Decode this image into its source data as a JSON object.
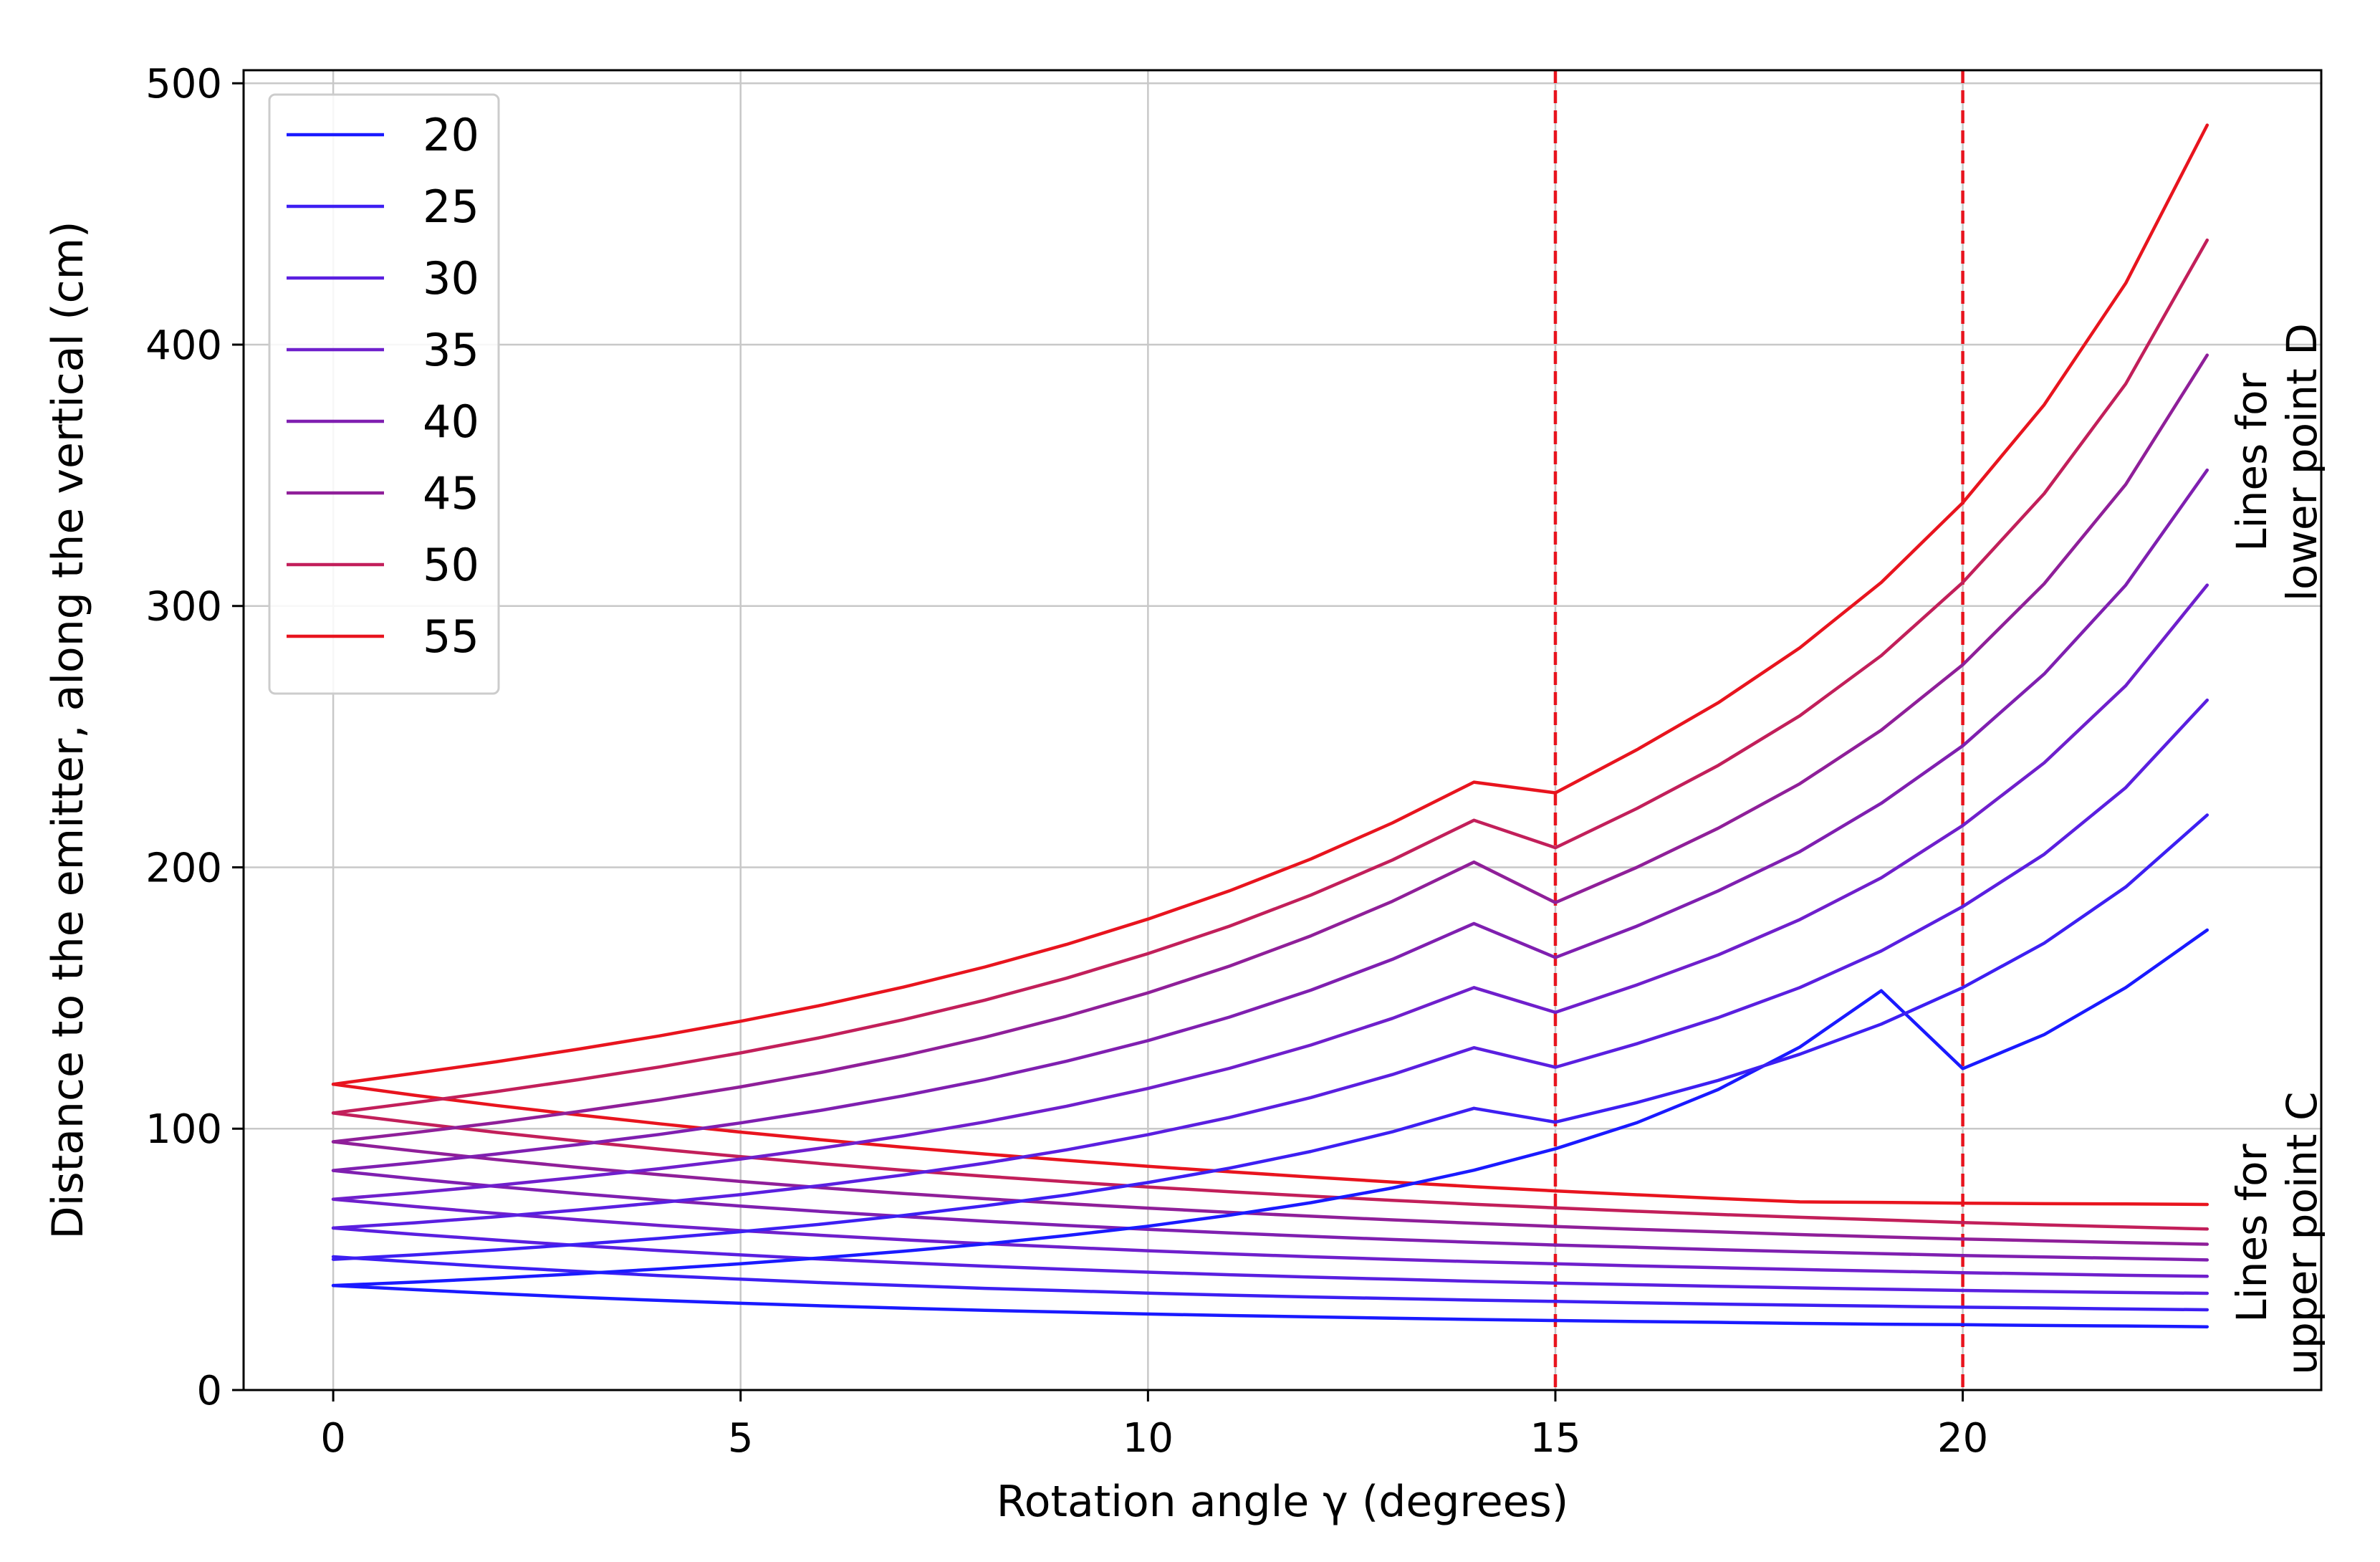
{
  "chart_data": {
    "type": "line",
    "title": "",
    "xlabel": "Rotation angle γ (degrees)",
    "ylabel": "Distance to the emitter, along the vertical (cm)",
    "xlim": [
      -1.1,
      24.4
    ],
    "ylim": [
      0,
      505
    ],
    "xticks": [
      0,
      5,
      10,
      15,
      20
    ],
    "yticks": [
      0,
      100,
      200,
      300,
      400,
      500
    ],
    "grid": true,
    "legend_position": "upper-left",
    "x": [
      0,
      1,
      2,
      3,
      4,
      5,
      6,
      7,
      8,
      9,
      10,
      11,
      12,
      13,
      14,
      15,
      16,
      17,
      18,
      19,
      20,
      21,
      22,
      23
    ],
    "lower_point_D": [
      {
        "name": "20",
        "color": "#1a1aff",
        "values": [
          40.0,
          41.3,
          42.8,
          44.5,
          46.3,
          48.3,
          50.6,
          53.1,
          55.9,
          59.1,
          62.7,
          66.9,
          71.7,
          77.3,
          84.1,
          92.3,
          102.3,
          115.0,
          131.2,
          152.8,
          123.0,
          136.0,
          154.0,
          176.0
        ]
      },
      {
        "name": "25",
        "color": "#3d1ff2",
        "values": [
          50.0,
          51.7,
          53.6,
          55.7,
          58.0,
          60.6,
          63.5,
          66.8,
          70.5,
          74.6,
          79.4,
          84.9,
          91.3,
          98.8,
          107.8,
          102.5,
          110.0,
          118.5,
          128.5,
          140.0,
          154.0,
          171.0,
          192.5,
          220.0
        ]
      },
      {
        "name": "30",
        "color": "#5a1fe0",
        "values": [
          62.0,
          64.0,
          66.3,
          68.9,
          71.7,
          74.8,
          78.3,
          82.3,
          86.8,
          91.9,
          97.7,
          104.3,
          111.9,
          120.7,
          131.0,
          123.5,
          132.5,
          142.5,
          154.0,
          168.0,
          185.0,
          205.0,
          230.5,
          264.0
        ]
      },
      {
        "name": "35",
        "color": "#6f1fcc",
        "values": [
          73.0,
          75.5,
          78.3,
          81.4,
          84.7,
          88.4,
          92.6,
          97.3,
          102.6,
          108.6,
          115.4,
          123.1,
          132.0,
          142.2,
          154.0,
          144.5,
          155.0,
          166.5,
          180.0,
          196.0,
          216.0,
          240.0,
          269.5,
          308.0
        ]
      },
      {
        "name": "40",
        "color": "#7f1fb0",
        "values": [
          84.0,
          87.0,
          90.3,
          93.9,
          97.8,
          102.2,
          107.1,
          112.6,
          118.8,
          125.8,
          133.7,
          142.7,
          153.0,
          164.8,
          178.5,
          165.5,
          177.5,
          191.0,
          206.0,
          224.5,
          246.5,
          274.0,
          308.0,
          352.0
        ]
      },
      {
        "name": "45",
        "color": "#8f1f99",
        "values": [
          95.0,
          98.5,
          102.3,
          106.5,
          111.0,
          116.0,
          121.6,
          127.9,
          135.0,
          143.0,
          152.0,
          162.2,
          173.8,
          187.0,
          202.0,
          186.5,
          200.0,
          215.0,
          232.0,
          252.5,
          277.5,
          308.5,
          346.5,
          396.0
        ]
      },
      {
        "name": "50",
        "color": "#c21f5a",
        "values": [
          106.0,
          110.0,
          114.2,
          118.7,
          123.6,
          129.0,
          135.0,
          141.7,
          149.2,
          157.6,
          167.0,
          177.5,
          189.4,
          202.8,
          218.0,
          207.5,
          222.5,
          239.0,
          258.0,
          281.0,
          309.0,
          343.0,
          385.0,
          440.0
        ]
      },
      {
        "name": "55",
        "color": "#e8141e",
        "values": [
          117.0,
          121.2,
          125.6,
          130.4,
          135.5,
          141.1,
          147.3,
          154.2,
          161.9,
          170.5,
          180.2,
          191.0,
          203.2,
          217.0,
          232.6,
          228.5,
          245.0,
          263.0,
          284.0,
          309.0,
          339.5,
          377.0,
          423.5,
          484.0
        ]
      }
    ],
    "upper_point_C": [
      {
        "name": "20",
        "color": "#1a1aff",
        "values": [
          40.0,
          38.4,
          36.9,
          35.5,
          34.3,
          33.2,
          32.2,
          31.3,
          30.5,
          29.8,
          29.1,
          28.5,
          28.0,
          27.5,
          27.0,
          26.6,
          26.2,
          25.9,
          25.5,
          25.2,
          25.0,
          24.7,
          24.5,
          24.2
        ]
      },
      {
        "name": "25",
        "color": "#3d1ff2",
        "values": [
          51.0,
          49.0,
          47.1,
          45.4,
          43.8,
          42.4,
          41.1,
          40.0,
          38.9,
          38.0,
          37.1,
          36.3,
          35.6,
          35.0,
          34.4,
          33.9,
          33.4,
          32.9,
          32.5,
          32.1,
          31.7,
          31.4,
          31.0,
          30.7
        ]
      },
      {
        "name": "30",
        "color": "#5a1fe0",
        "values": [
          62.0,
          59.6,
          57.4,
          55.3,
          53.4,
          51.7,
          50.1,
          48.7,
          47.4,
          46.2,
          45.1,
          44.1,
          43.2,
          42.4,
          41.6,
          40.9,
          40.3,
          39.7,
          39.1,
          38.6,
          38.1,
          37.7,
          37.3,
          37.0
        ]
      },
      {
        "name": "35",
        "color": "#6f1fcc",
        "values": [
          73.0,
          70.2,
          67.6,
          65.2,
          63.0,
          61.0,
          59.2,
          57.5,
          56.0,
          54.6,
          53.3,
          52.1,
          51.0,
          50.0,
          49.1,
          48.3,
          47.5,
          46.8,
          46.1,
          45.5,
          44.9,
          44.4,
          43.9,
          43.5
        ]
      },
      {
        "name": "40",
        "color": "#7f1fb0",
        "values": [
          84.0,
          80.8,
          77.9,
          75.2,
          72.7,
          70.4,
          68.3,
          66.4,
          64.6,
          63.0,
          61.5,
          60.1,
          58.8,
          57.6,
          56.5,
          55.5,
          54.6,
          53.7,
          52.9,
          52.2,
          51.5,
          50.9,
          50.4,
          49.8
        ]
      },
      {
        "name": "45",
        "color": "#8f1f99",
        "values": [
          95.0,
          91.5,
          88.2,
          85.2,
          82.4,
          79.8,
          77.4,
          75.2,
          73.2,
          71.3,
          69.6,
          68.0,
          66.5,
          65.1,
          63.8,
          62.6,
          61.5,
          60.5,
          59.5,
          58.6,
          57.8,
          57.1,
          56.4,
          55.8
        ]
      },
      {
        "name": "50",
        "color": "#c21f5a",
        "values": [
          106.0,
          102.2,
          98.6,
          95.3,
          92.2,
          89.3,
          86.6,
          84.1,
          81.8,
          79.7,
          77.7,
          75.9,
          74.2,
          72.6,
          71.1,
          69.7,
          68.4,
          67.2,
          66.1,
          65.1,
          64.1,
          63.2,
          62.4,
          61.6
        ]
      },
      {
        "name": "55",
        "color": "#e8141e",
        "values": [
          117.0,
          112.8,
          108.9,
          105.3,
          101.9,
          98.7,
          95.7,
          92.9,
          90.3,
          87.9,
          85.6,
          83.5,
          81.5,
          79.6,
          77.8,
          76.2,
          74.7,
          73.3,
          72.0,
          71.8,
          71.5,
          71.3,
          71.2,
          71.0
        ]
      }
    ],
    "vertical_markers": [
      {
        "x": 15,
        "color": "#e8141e",
        "style": "dashed"
      },
      {
        "x": 20,
        "color": "#e8141e",
        "style": "dashed"
      }
    ],
    "annotations": [
      {
        "text_lines": [
          "Lines for",
          "lower point D"
        ],
        "position": "right-upper",
        "rotation": "vertical"
      },
      {
        "text_lines": [
          "Lines for",
          "upper point C"
        ],
        "position": "right-lower",
        "rotation": "vertical"
      }
    ]
  }
}
